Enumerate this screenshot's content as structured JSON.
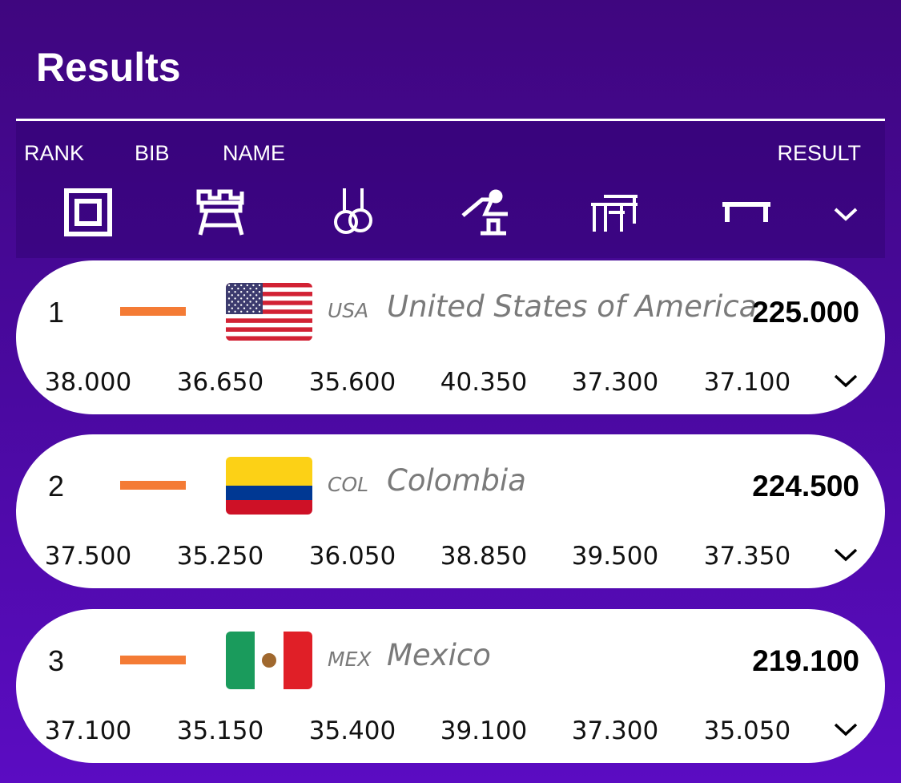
{
  "header": {
    "title": "Results",
    "columns": {
      "rank": "RANK",
      "bib": "BIB",
      "name": "NAME",
      "result": "RESULT"
    }
  },
  "rows": [
    {
      "rank": "1",
      "code": "USA",
      "name": "United States of America",
      "total": "225.000",
      "scores": [
        "38.000",
        "36.650",
        "35.600",
        "40.350",
        "37.300",
        "37.100"
      ]
    },
    {
      "rank": "2",
      "code": "COL",
      "name": "Colombia",
      "total": "224.500",
      "scores": [
        "37.500",
        "35.250",
        "36.050",
        "38.850",
        "39.500",
        "37.350"
      ]
    },
    {
      "rank": "3",
      "code": "MEX",
      "name": "Mexico",
      "total": "219.100",
      "scores": [
        "37.100",
        "35.150",
        "35.400",
        "39.100",
        "37.300",
        "35.050"
      ]
    }
  ]
}
